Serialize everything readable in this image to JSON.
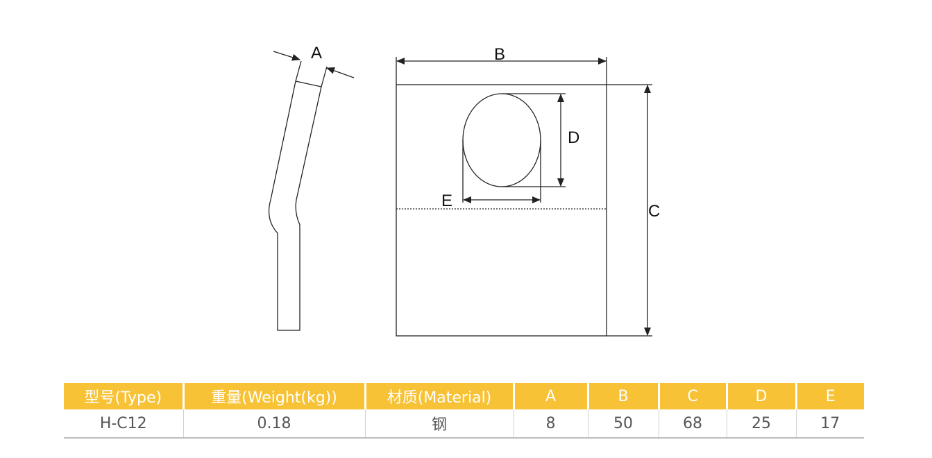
{
  "drawing": {
    "labels": {
      "a": "A",
      "b": "B",
      "c": "C",
      "d": "D",
      "e": "E"
    },
    "line_color": "#222222"
  },
  "table": {
    "header_color": "#f7c235",
    "headers": [
      "型号(Type)",
      "重量(Weight(kg))",
      "材质(Material)",
      "A",
      "B",
      "C",
      "D",
      "E"
    ],
    "rows": [
      [
        "H-C12",
        "0.18",
        "钢",
        "8",
        "50",
        "68",
        "25",
        "17"
      ]
    ]
  }
}
